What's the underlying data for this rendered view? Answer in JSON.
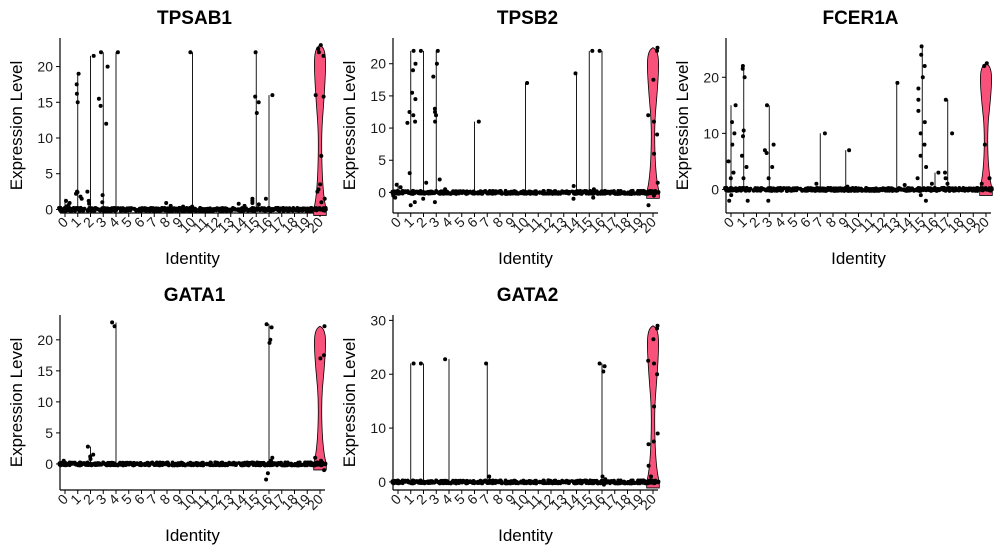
{
  "figure": {
    "panels": [
      "TPSAB1",
      "TPSB2",
      "FCER1A",
      "GATA1",
      "GATA2"
    ]
  },
  "colors": {
    "violin_fill": "#F8527B",
    "point": "#000000",
    "axis": "#000000",
    "background": "#FFFFFF"
  },
  "chart_data": [
    {
      "type": "violin",
      "title": "TPSAB1",
      "xlabel": "Identity",
      "ylabel": "Expression Level",
      "categories": [
        "0",
        "1",
        "2",
        "3",
        "4",
        "5",
        "6",
        "7",
        "8",
        "9",
        "10",
        "11",
        "12",
        "13",
        "14",
        "15",
        "16",
        "17",
        "18",
        "19",
        "20"
      ],
      "ylim": [
        -0.5,
        24
      ],
      "yticks": [
        0,
        5,
        10,
        15,
        20
      ],
      "violin_fill": "#F8527B",
      "series": [
        {
          "category": "0",
          "max": 1.5,
          "outliers": [
            0.9,
            1.2,
            0.6,
            0.4
          ]
        },
        {
          "category": "1",
          "max": 19,
          "outliers": [
            16.2,
            17.5,
            19,
            15,
            2.5,
            2.2,
            1.8,
            2.4,
            1.5
          ]
        },
        {
          "category": "2",
          "max": 21.5,
          "outliers": [
            21.5,
            2.5,
            1.2,
            0.8
          ]
        },
        {
          "category": "3",
          "max": 22,
          "outliers": [
            22,
            20,
            15.5,
            14.5,
            12,
            2,
            1
          ]
        },
        {
          "category": "4",
          "max": 22,
          "outliers": [
            22
          ]
        },
        {
          "category": "5",
          "max": 0.3,
          "outliers": []
        },
        {
          "category": "6",
          "max": 0.3,
          "outliers": []
        },
        {
          "category": "7",
          "max": 0.3,
          "outliers": []
        },
        {
          "category": "8",
          "max": 0.9,
          "outliers": [
            0.9,
            0.5
          ]
        },
        {
          "category": "9",
          "max": 0.5,
          "outliers": [
            0.4
          ]
        },
        {
          "category": "10",
          "max": 22,
          "outliers": [
            22,
            0.4
          ]
        },
        {
          "category": "11",
          "max": 0.3,
          "outliers": []
        },
        {
          "category": "12",
          "max": 0.3,
          "outliers": []
        },
        {
          "category": "13",
          "max": 0.3,
          "outliers": []
        },
        {
          "category": "14",
          "max": 0.8,
          "outliers": [
            0.8,
            0.5
          ]
        },
        {
          "category": "15",
          "max": 22,
          "outliers": [
            22,
            15.8,
            15,
            13.5,
            1.5,
            1.2,
            0.9,
            0.7
          ]
        },
        {
          "category": "16",
          "max": 16,
          "outliers": [
            16,
            1.5
          ]
        },
        {
          "category": "17",
          "max": 0.3,
          "outliers": []
        },
        {
          "category": "18",
          "max": 0.3,
          "outliers": []
        },
        {
          "category": "19",
          "max": 0.3,
          "outliers": []
        },
        {
          "category": "20",
          "max": 23,
          "violin": true,
          "outliers": [
            23,
            22.5,
            22,
            21.5,
            16,
            15.8,
            7.5,
            3.5,
            2.8,
            2.5,
            1.5,
            1
          ]
        }
      ]
    },
    {
      "type": "violin",
      "title": "TPSB2",
      "xlabel": "Identity",
      "ylabel": "Expression Level",
      "categories": [
        "0",
        "1",
        "2",
        "3",
        "4",
        "5",
        "6",
        "7",
        "8",
        "9",
        "10",
        "11",
        "12",
        "13",
        "14",
        "15",
        "16",
        "17",
        "18",
        "19",
        "20"
      ],
      "ylim": [
        -3.2,
        24
      ],
      "yticks": [
        0,
        5,
        10,
        15,
        20
      ],
      "violin_fill": "#F8527B",
      "series": [
        {
          "category": "0",
          "max": 1.5,
          "outliers": [
            1.2,
            -0.8,
            -0.5,
            0.8
          ]
        },
        {
          "category": "1",
          "max": 22,
          "outliers": [
            22,
            20,
            19,
            15.5,
            14.5,
            12.5,
            12,
            11,
            10.8,
            3,
            -1.5,
            -2
          ]
        },
        {
          "category": "2",
          "max": 22,
          "outliers": [
            22,
            1.5,
            -1
          ]
        },
        {
          "category": "3",
          "max": 22,
          "outliers": [
            22,
            20,
            18,
            13,
            12.5,
            12,
            11,
            2,
            -1.5
          ]
        },
        {
          "category": "4",
          "max": 0.8,
          "outliers": [
            0.5
          ]
        },
        {
          "category": "5",
          "max": 0.3,
          "outliers": []
        },
        {
          "category": "6",
          "max": 11,
          "outliers": [
            11
          ]
        },
        {
          "category": "7",
          "max": 0.3,
          "outliers": []
        },
        {
          "category": "8",
          "max": 0.3,
          "outliers": []
        },
        {
          "category": "9",
          "max": 0.3,
          "outliers": []
        },
        {
          "category": "10",
          "max": 17,
          "outliers": [
            17
          ]
        },
        {
          "category": "11",
          "max": 0.3,
          "outliers": []
        },
        {
          "category": "12",
          "max": 0.3,
          "outliers": []
        },
        {
          "category": "13",
          "max": 0.3,
          "outliers": []
        },
        {
          "category": "14",
          "max": 18.5,
          "outliers": [
            18.5,
            1,
            -1
          ]
        },
        {
          "category": "15",
          "max": 22,
          "outliers": [
            22,
            0.5,
            -0.8
          ]
        },
        {
          "category": "16",
          "max": 22,
          "outliers": [
            22
          ]
        },
        {
          "category": "17",
          "max": 0.3,
          "outliers": []
        },
        {
          "category": "18",
          "max": 0.3,
          "outliers": []
        },
        {
          "category": "19",
          "max": 0.3,
          "outliers": []
        },
        {
          "category": "20",
          "max": 22.5,
          "violin": true,
          "outliers": [
            22.5,
            22,
            17.5,
            12,
            11,
            9,
            6,
            1.5,
            -0.5,
            -2
          ]
        }
      ]
    },
    {
      "type": "violin",
      "title": "FCER1A",
      "xlabel": "Identity",
      "ylabel": "Expression Level",
      "categories": [
        "0",
        "1",
        "2",
        "3",
        "4",
        "5",
        "6",
        "7",
        "8",
        "9",
        "10",
        "11",
        "12",
        "13",
        "14",
        "15",
        "16",
        "17",
        "18",
        "19",
        "20"
      ],
      "ylim": [
        -4.2,
        27
      ],
      "yticks": [
        0,
        10,
        20
      ],
      "violin_fill": "#F8527B",
      "series": [
        {
          "category": "0",
          "max": 15,
          "outliers": [
            15,
            12,
            10,
            8,
            5,
            3,
            2,
            -1,
            -2
          ]
        },
        {
          "category": "1",
          "max": 22,
          "outliers": [
            22,
            21.5,
            20,
            10.5,
            9.5,
            6,
            4,
            2,
            -2
          ]
        },
        {
          "category": "2",
          "max": 0.5,
          "outliers": []
        },
        {
          "category": "3",
          "max": 15,
          "outliers": [
            15,
            8,
            7,
            6.5,
            4,
            2,
            -2
          ]
        },
        {
          "category": "4",
          "max": 0.3,
          "outliers": []
        },
        {
          "category": "5",
          "max": 0.3,
          "outliers": []
        },
        {
          "category": "6",
          "max": 0.3,
          "outliers": []
        },
        {
          "category": "7",
          "max": 10,
          "outliers": [
            10,
            1
          ]
        },
        {
          "category": "8",
          "max": 0.3,
          "outliers": []
        },
        {
          "category": "9",
          "max": 7,
          "outliers": [
            7,
            0.5
          ]
        },
        {
          "category": "10",
          "max": 0.3,
          "outliers": []
        },
        {
          "category": "11",
          "max": 0.3,
          "outliers": []
        },
        {
          "category": "12",
          "max": 0.3,
          "outliers": []
        },
        {
          "category": "13",
          "max": 19,
          "outliers": [
            19
          ]
        },
        {
          "category": "14",
          "max": 1,
          "outliers": [
            0.8
          ]
        },
        {
          "category": "15",
          "max": 25.5,
          "outliers": [
            25.5,
            24,
            22,
            20,
            18,
            16,
            14,
            12,
            10,
            8,
            6,
            4,
            2,
            -1,
            -2
          ]
        },
        {
          "category": "16",
          "max": 3,
          "outliers": [
            3,
            1
          ]
        },
        {
          "category": "17",
          "max": 16,
          "outliers": [
            16,
            10,
            3,
            2,
            1
          ]
        },
        {
          "category": "18",
          "max": 0.3,
          "outliers": []
        },
        {
          "category": "19",
          "max": 0.3,
          "outliers": []
        },
        {
          "category": "20",
          "max": 22.5,
          "violin": true,
          "outliers": [
            22.5,
            22,
            8,
            2,
            1
          ]
        }
      ]
    },
    {
      "type": "violin",
      "title": "GATA1",
      "xlabel": "Identity",
      "ylabel": "Expression Level",
      "categories": [
        "0",
        "1",
        "2",
        "3",
        "4",
        "5",
        "6",
        "7",
        "8",
        "9",
        "10",
        "11",
        "12",
        "13",
        "14",
        "15",
        "16",
        "17",
        "18",
        "19",
        "20"
      ],
      "ylim": [
        -4.2,
        24
      ],
      "yticks": [
        0,
        5,
        10,
        15,
        20
      ],
      "violin_fill": "#F8527B",
      "series": [
        {
          "category": "0",
          "max": 0.6,
          "outliers": [
            0.5
          ]
        },
        {
          "category": "1",
          "max": 0.4,
          "outliers": []
        },
        {
          "category": "2",
          "max": 2.8,
          "outliers": [
            2.8,
            1.5,
            1.2,
            0.8
          ]
        },
        {
          "category": "3",
          "max": 0.3,
          "outliers": []
        },
        {
          "category": "4",
          "max": 22.8,
          "outliers": [
            22.8,
            22.2
          ]
        },
        {
          "category": "5",
          "max": 0.3,
          "outliers": []
        },
        {
          "category": "6",
          "max": 0.3,
          "outliers": []
        },
        {
          "category": "7",
          "max": 0.3,
          "outliers": []
        },
        {
          "category": "8",
          "max": 0.3,
          "outliers": []
        },
        {
          "category": "9",
          "max": 0.3,
          "outliers": []
        },
        {
          "category": "10",
          "max": 0.3,
          "outliers": []
        },
        {
          "category": "11",
          "max": 0.3,
          "outliers": []
        },
        {
          "category": "12",
          "max": 0.3,
          "outliers": []
        },
        {
          "category": "13",
          "max": 0.3,
          "outliers": []
        },
        {
          "category": "14",
          "max": 0.3,
          "outliers": []
        },
        {
          "category": "15",
          "max": 0.3,
          "outliers": []
        },
        {
          "category": "16",
          "max": 22.5,
          "outliers": [
            22.5,
            22,
            20,
            19.5,
            1,
            0.5,
            -1.5,
            -2.5
          ]
        },
        {
          "category": "17",
          "max": 0.3,
          "outliers": []
        },
        {
          "category": "18",
          "max": 0.3,
          "outliers": []
        },
        {
          "category": "19",
          "max": 0.3,
          "outliers": []
        },
        {
          "category": "20",
          "max": 22.2,
          "violin": true,
          "outliers": [
            22.2,
            17.5,
            17,
            1,
            0.5,
            -1
          ]
        }
      ]
    },
    {
      "type": "violin",
      "title": "GATA2",
      "xlabel": "Identity",
      "ylabel": "Expression Level",
      "categories": [
        "0",
        "1",
        "2",
        "3",
        "4",
        "5",
        "6",
        "7",
        "8",
        "9",
        "10",
        "11",
        "12",
        "13",
        "14",
        "15",
        "16",
        "17",
        "18",
        "19",
        "20"
      ],
      "ylim": [
        -1.5,
        31
      ],
      "yticks": [
        0,
        10,
        20,
        30
      ],
      "violin_fill": "#F8527B",
      "series": [
        {
          "category": "0",
          "max": 0.3,
          "outliers": []
        },
        {
          "category": "1",
          "max": 22,
          "outliers": [
            22
          ]
        },
        {
          "category": "2",
          "max": 22,
          "outliers": [
            22
          ]
        },
        {
          "category": "3",
          "max": 0.3,
          "outliers": []
        },
        {
          "category": "4",
          "max": 22.8,
          "outliers": [
            22.8
          ]
        },
        {
          "category": "5",
          "max": 0.3,
          "outliers": []
        },
        {
          "category": "6",
          "max": 0.3,
          "outliers": []
        },
        {
          "category": "7",
          "max": 22,
          "outliers": [
            22,
            1
          ]
        },
        {
          "category": "8",
          "max": 0.3,
          "outliers": []
        },
        {
          "category": "9",
          "max": 0.3,
          "outliers": []
        },
        {
          "category": "10",
          "max": 0.3,
          "outliers": []
        },
        {
          "category": "11",
          "max": 0.3,
          "outliers": []
        },
        {
          "category": "12",
          "max": 0.3,
          "outliers": []
        },
        {
          "category": "13",
          "max": 0.3,
          "outliers": []
        },
        {
          "category": "14",
          "max": 0.3,
          "outliers": []
        },
        {
          "category": "15",
          "max": 0.3,
          "outliers": []
        },
        {
          "category": "16",
          "max": 22,
          "outliers": [
            22,
            21.5,
            20.5,
            1,
            0.5,
            -0.5
          ]
        },
        {
          "category": "17",
          "max": 0.3,
          "outliers": []
        },
        {
          "category": "18",
          "max": 0.3,
          "outliers": []
        },
        {
          "category": "19",
          "max": 0.3,
          "outliers": []
        },
        {
          "category": "20",
          "max": 29,
          "violin": true,
          "outliers": [
            29,
            28.5,
            26.5,
            22.5,
            22,
            20,
            14,
            9,
            7.5,
            7,
            3,
            1
          ]
        }
      ]
    }
  ]
}
